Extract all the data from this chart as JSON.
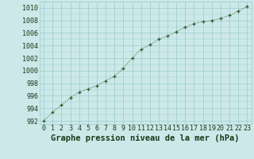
{
  "x": [
    0,
    1,
    2,
    3,
    4,
    5,
    6,
    7,
    8,
    9,
    10,
    11,
    12,
    13,
    14,
    15,
    16,
    17,
    18,
    19,
    20,
    21,
    22,
    23
  ],
  "y": [
    992.0,
    993.4,
    994.5,
    995.7,
    996.6,
    997.1,
    997.6,
    998.4,
    999.1,
    1000.4,
    1002.0,
    1003.4,
    1004.1,
    1005.0,
    1005.5,
    1006.2,
    1006.9,
    1007.5,
    1007.8,
    1008.0,
    1008.3,
    1008.8,
    1009.5,
    1010.2
  ],
  "line_color": "#2d5a2d",
  "marker": "+",
  "bg_color": "#cce8e8",
  "grid_color": "#99cccc",
  "xlabel": "Graphe pression niveau de la mer (hPa)",
  "xlabel_fontsize": 7.5,
  "xlabel_color": "#1a3a1a",
  "tick_color": "#1a3a1a",
  "tick_fontsize": 6.0,
  "ytick_values": [
    992,
    994,
    996,
    998,
    1000,
    1002,
    1004,
    1006,
    1008,
    1010
  ],
  "xtick_values": [
    0,
    1,
    2,
    3,
    4,
    5,
    6,
    7,
    8,
    9,
    10,
    11,
    12,
    13,
    14,
    15,
    16,
    17,
    18,
    19,
    20,
    21,
    22,
    23
  ],
  "ylim": [
    991.5,
    1011.0
  ],
  "xlim": [
    -0.5,
    23.5
  ]
}
